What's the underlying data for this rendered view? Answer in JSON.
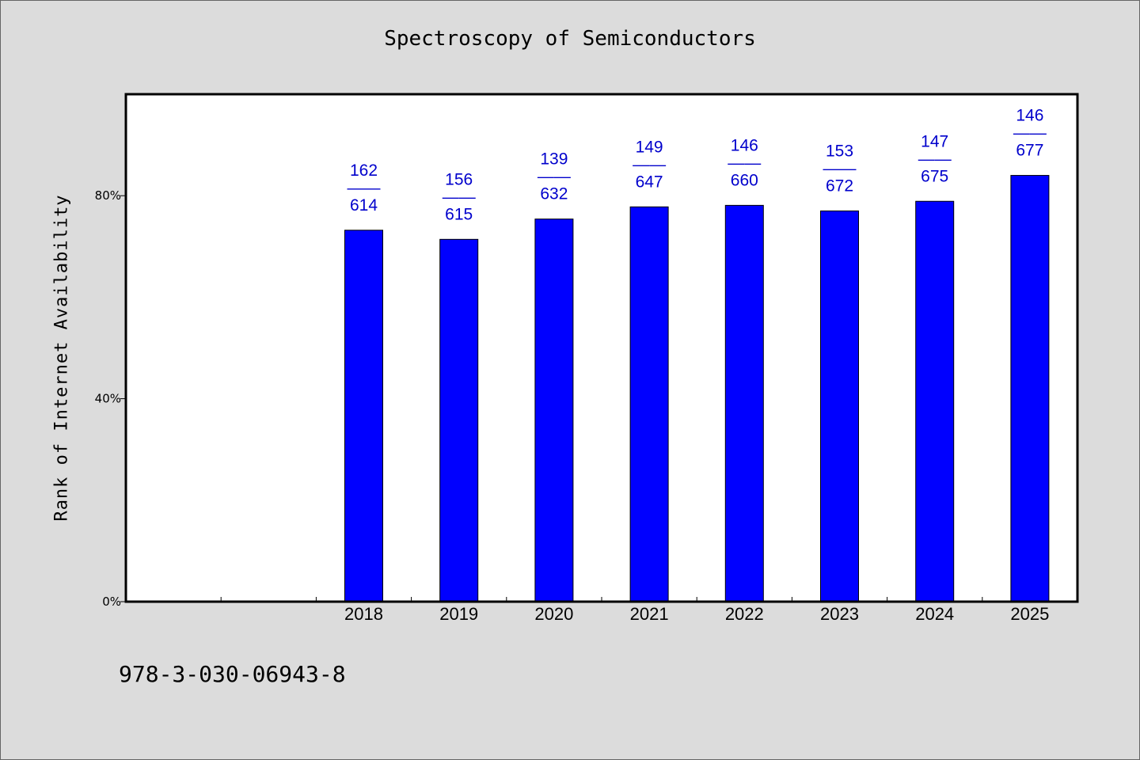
{
  "header": {
    "title": "Spectroscopy of Semiconductors"
  },
  "footer": {
    "isbn": "978-3-030-06943-8"
  },
  "colors": {
    "bar": "#0000ff",
    "label": "#0000cc",
    "plot_bg": "#ffffff",
    "page_bg": "#dcdcdc"
  },
  "chart_data": {
    "type": "bar",
    "title": "Spectroscopy of Semiconductors",
    "xlabel": "",
    "ylabel": "Rank of Internet Availability",
    "ylim": [
      0,
      100
    ],
    "yticks": [
      {
        "value": 0,
        "label": "0%"
      },
      {
        "value": 40,
        "label": "40%"
      },
      {
        "value": 80,
        "label": "80%"
      }
    ],
    "categories": [
      "",
      "",
      "2018",
      "2019",
      "2020",
      "2021",
      "2022",
      "2023",
      "2024",
      "2025"
    ],
    "values": [
      null,
      null,
      73.2,
      71.4,
      75.4,
      77.8,
      78.1,
      77.0,
      78.9,
      84.0
    ],
    "data_labels": [
      null,
      null,
      {
        "top": "162",
        "sep": "——",
        "bottom": "614"
      },
      {
        "top": "156",
        "sep": "——",
        "bottom": "615"
      },
      {
        "top": "139",
        "sep": "——",
        "bottom": "632"
      },
      {
        "top": "149",
        "sep": "——",
        "bottom": "647"
      },
      {
        "top": "146",
        "sep": "——",
        "bottom": "660"
      },
      {
        "top": "153",
        "sep": "——",
        "bottom": "672"
      },
      {
        "top": "147",
        "sep": "——",
        "bottom": "675"
      },
      {
        "top": "146",
        "sep": "——",
        "bottom": "677"
      }
    ],
    "grid": false,
    "legend": "none"
  }
}
